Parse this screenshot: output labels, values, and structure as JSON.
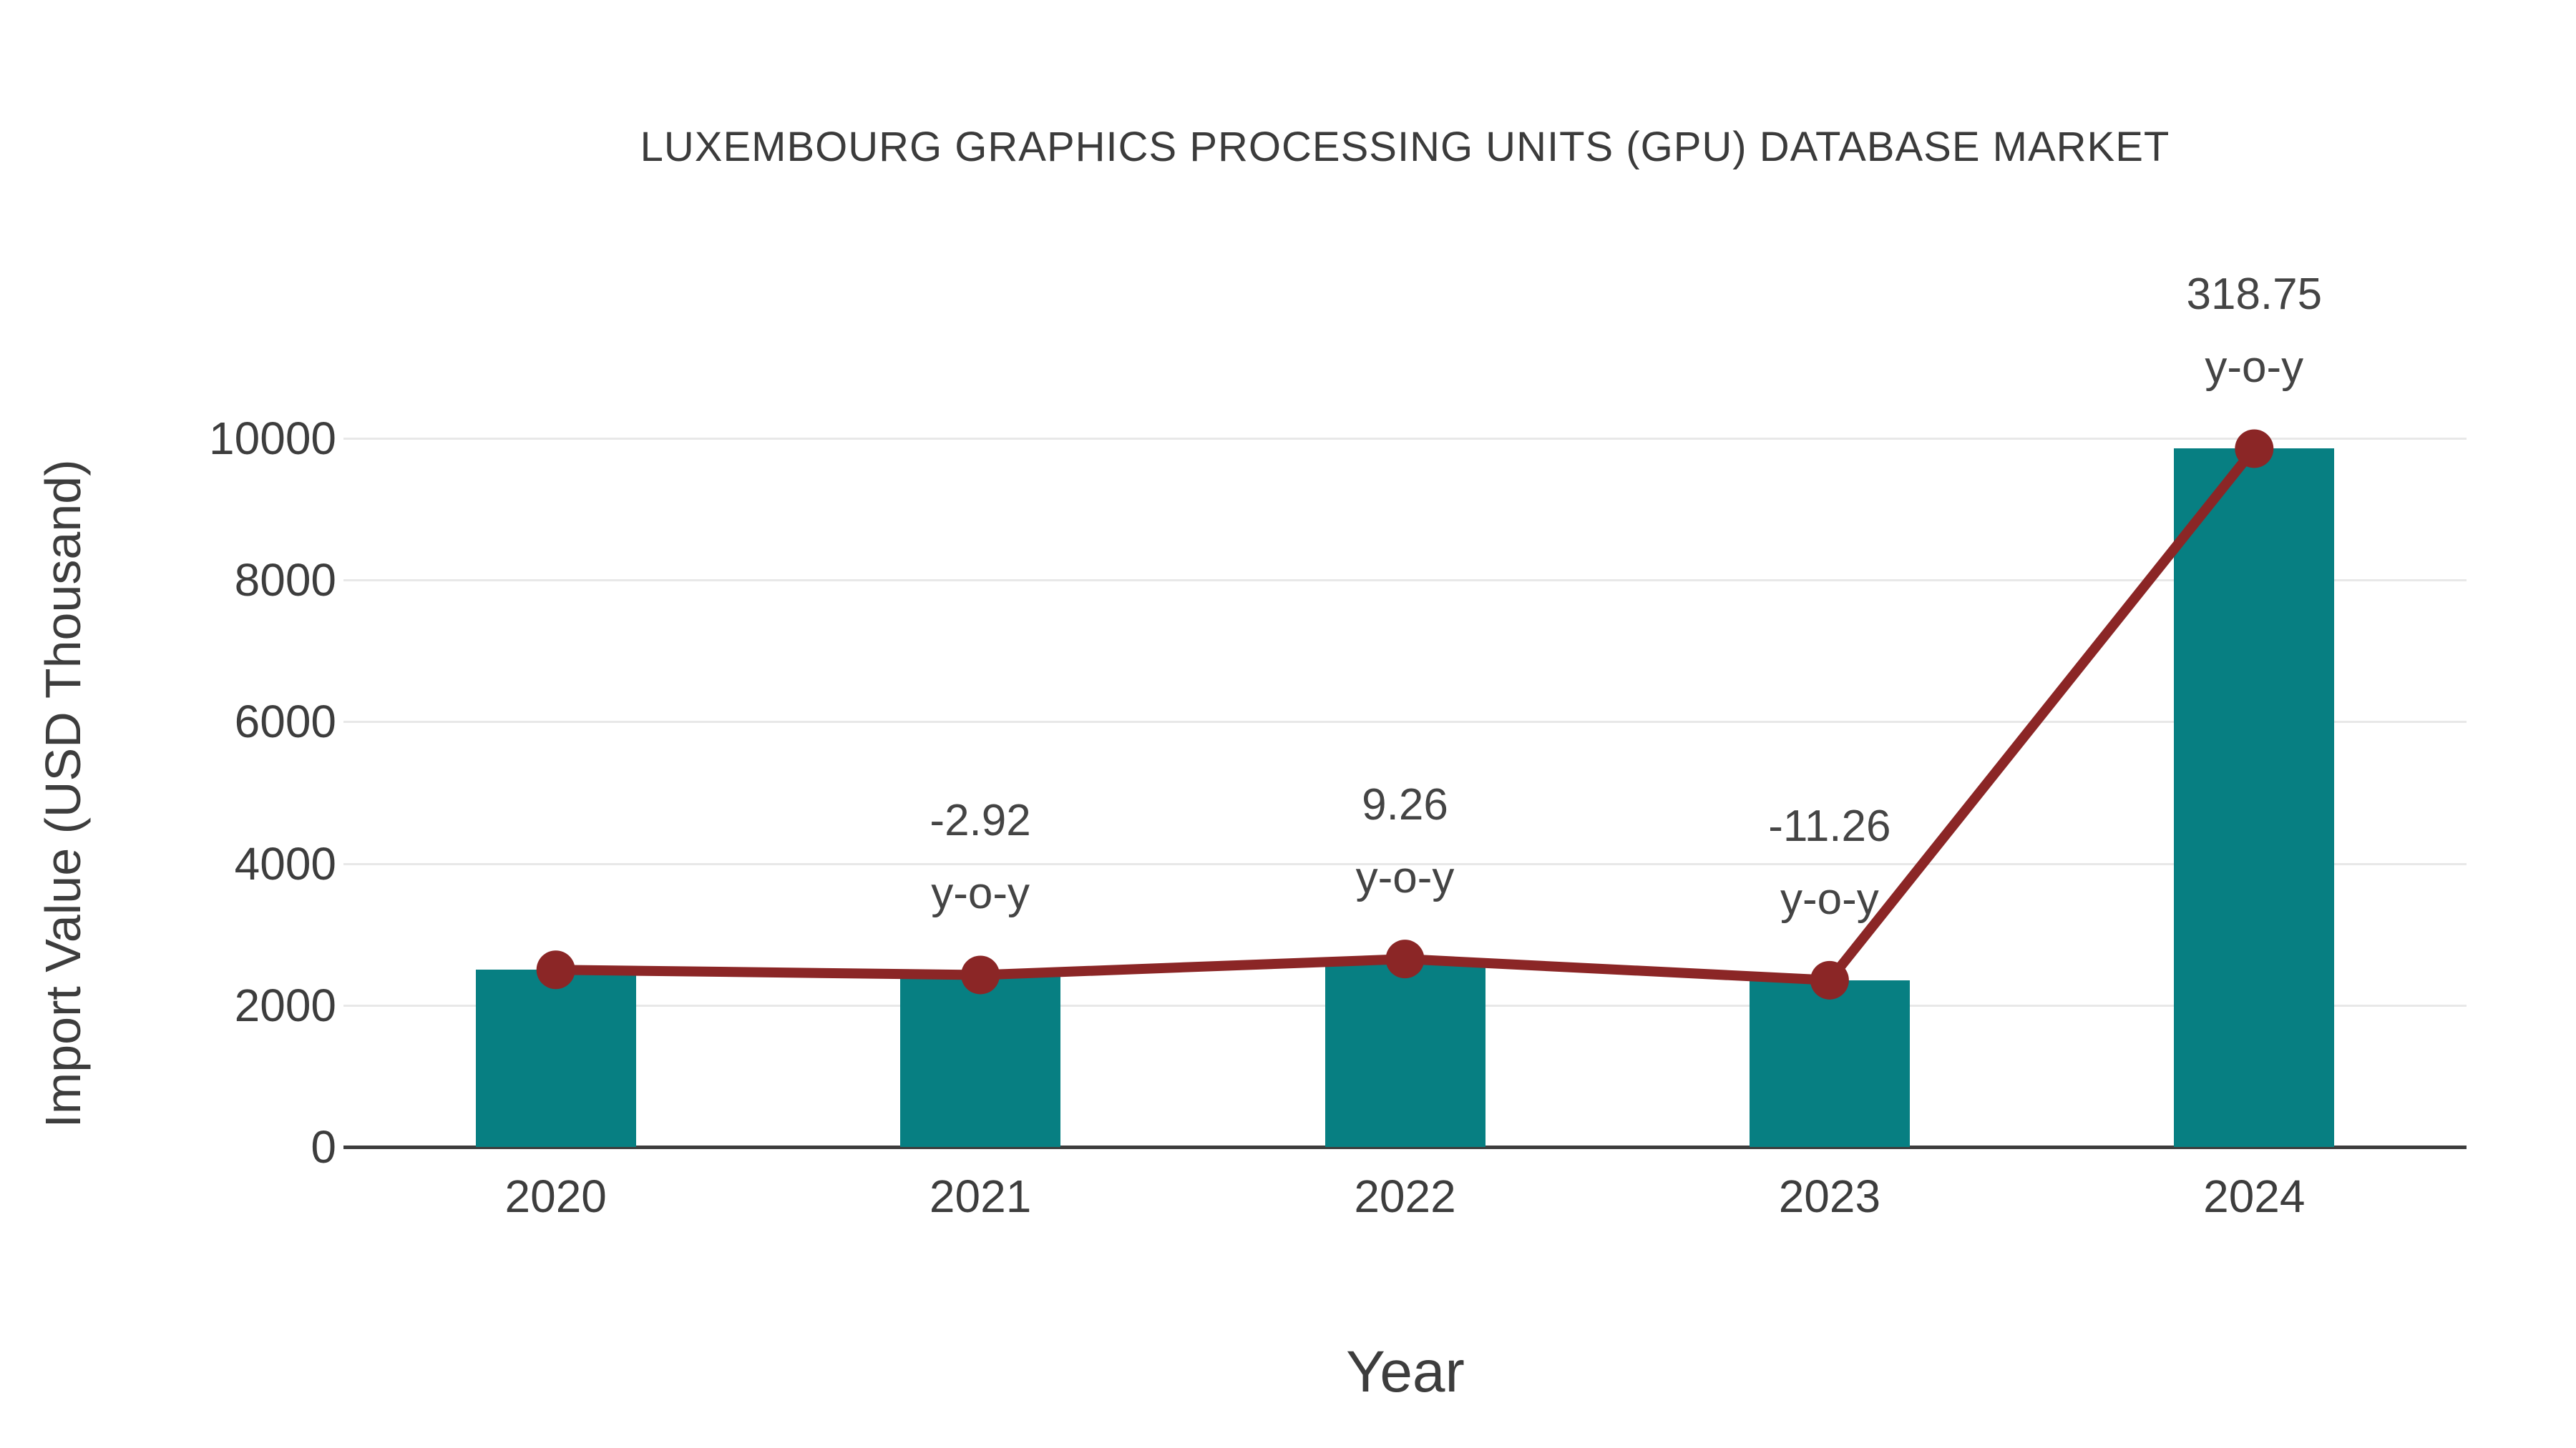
{
  "chart_data": {
    "type": "bar+line",
    "title": "LUXEMBOURG GRAPHICS PROCESSING UNITS (GPU) DATABASE MARKET",
    "xlabel": "Year",
    "ylabel": "Import Value (USD Thousand)",
    "categories": [
      "2020",
      "2021",
      "2022",
      "2023",
      "2024"
    ],
    "series": [
      {
        "name": "Import Value bars",
        "type": "bar",
        "color": "#077f82",
        "values": [
          2500,
          2427,
          2652,
          2353,
          9854
        ]
      },
      {
        "name": "Import Value trend",
        "type": "line",
        "color": "#8b2626",
        "values": [
          2500,
          2427,
          2652,
          2353,
          9854
        ]
      }
    ],
    "annotations": [
      {
        "category": "2021",
        "value": "-2.92",
        "suffix": "y-o-y"
      },
      {
        "category": "2022",
        "value": "9.26",
        "suffix": "y-o-y"
      },
      {
        "category": "2023",
        "value": "-11.26",
        "suffix": "y-o-y"
      },
      {
        "category": "2024",
        "value": "318.75",
        "suffix": "y-o-y"
      }
    ],
    "yticks": [
      0,
      2000,
      4000,
      6000,
      8000,
      10000
    ],
    "ylim": [
      0,
      10600
    ],
    "grid": true,
    "legend_position": "none",
    "colors": {
      "bar": "#077f82",
      "line": "#8b2626",
      "text": "#3d3d3d",
      "gridline": "#e8e8e8",
      "axis_line": "#3d3d3d",
      "background": "#ffffff"
    }
  }
}
